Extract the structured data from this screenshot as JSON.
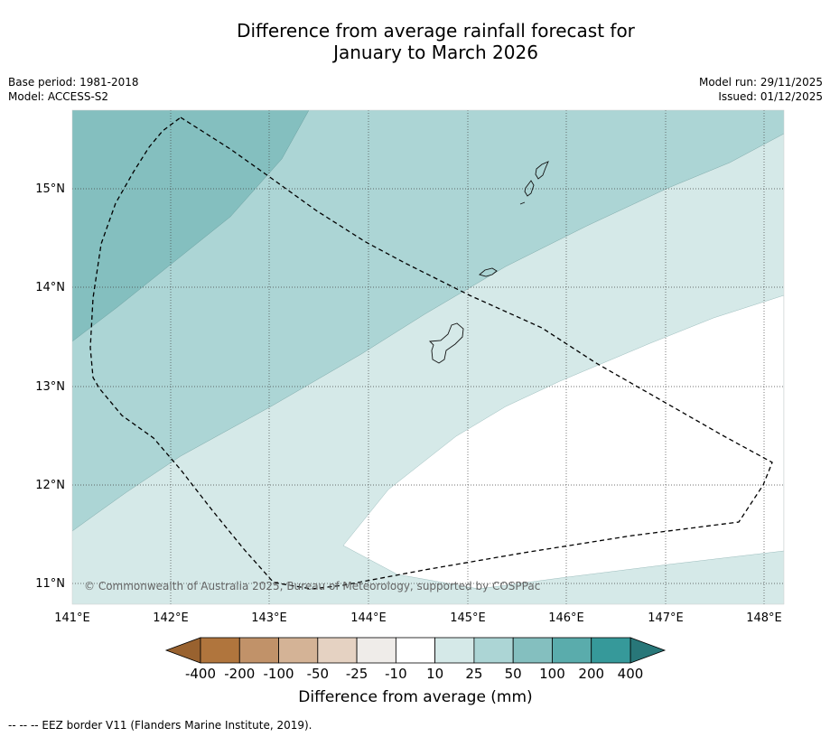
{
  "title": {
    "line1": "Difference from average rainfall forecast for",
    "line2": "January to March 2026"
  },
  "meta": {
    "base_period": "Base period: 1981-2018",
    "model": "Model: ACCESS-S2",
    "model_run": "Model run: 29/11/2025",
    "issued": "Issued: 01/12/2025"
  },
  "map": {
    "copyright": "© Commonwealth of Australia 2025, Bureau of Meteorology, supported by COSPPac",
    "lon_labels": [
      "141°E",
      "142°E",
      "143°E",
      "144°E",
      "145°E",
      "146°E",
      "147°E",
      "148°E"
    ],
    "lat_labels": [
      "15°N",
      "14°N",
      "13°N",
      "12°N",
      "11°N"
    ]
  },
  "colorbar": {
    "title": "Difference from average (mm)",
    "tick_labels": [
      "-400",
      "-200",
      "-100",
      "-50",
      "-25",
      "-10",
      "10",
      "25",
      "50",
      "100",
      "200",
      "400"
    ],
    "colors": {
      "under": "#99622f",
      "bins": [
        "#b0753d",
        "#c19269",
        "#d4b396",
        "#e5d2c2",
        "#efece9",
        "#ffffff",
        "#d5e9e8",
        "#acd5d5",
        "#84bfbf",
        "#5aacac",
        "#36999a"
      ],
      "over": "#287779"
    }
  },
  "footnote": "--  --  -- EEZ border V11 (Flanders Marine Institute, 2019)."
}
